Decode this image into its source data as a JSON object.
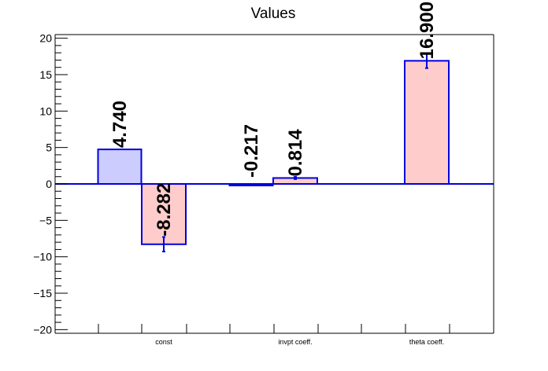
{
  "chart_data": {
    "type": "bar",
    "title": "Values",
    "xlabel": "",
    "ylabel": "",
    "ylim": [
      -20.5,
      20.5
    ],
    "yticks": [
      -20,
      -15,
      -10,
      -5,
      0,
      5,
      10,
      15,
      20
    ],
    "ytick_labels": [
      "−20",
      "−15",
      "−10",
      "−5",
      "0",
      "5",
      "10",
      "15",
      "20"
    ],
    "categories": [
      "const",
      "invpt coeff.",
      "theta coeff."
    ],
    "series": [
      {
        "color": "#ccccff",
        "values": [
          4.74,
          -0.217,
          null
        ],
        "errors": [
          0,
          0,
          null
        ],
        "labels": [
          "4.740",
          "-0.217",
          ""
        ]
      },
      {
        "color": "#ffcccc",
        "values": [
          -8.282,
          0.814,
          16.9
        ],
        "errors": [
          1.0,
          0.15,
          1.0
        ],
        "labels": "auto"
      }
    ],
    "edge_color": "#0000dd",
    "grid": false,
    "legend": "none"
  }
}
